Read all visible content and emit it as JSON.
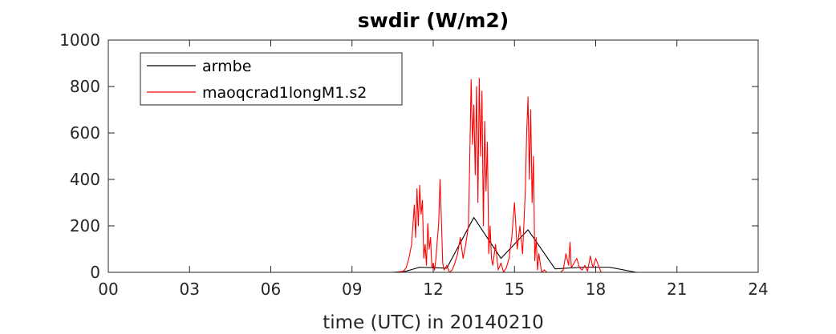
{
  "chart_data": {
    "type": "line",
    "title": "swdir  (W/m2)",
    "xlabel": "time (UTC) in 20140210",
    "ylabel": "",
    "xlim": [
      0,
      24
    ],
    "ylim": [
      0,
      1000
    ],
    "x_ticks": [
      0,
      3,
      6,
      9,
      12,
      15,
      18,
      21,
      24
    ],
    "x_tick_labels": [
      "00",
      "03",
      "06",
      "09",
      "12",
      "15",
      "18",
      "21",
      "24"
    ],
    "y_ticks": [
      0,
      200,
      400,
      600,
      800,
      1000
    ],
    "y_tick_labels": [
      "0",
      "200",
      "400",
      "600",
      "800",
      "1000"
    ],
    "grid": false,
    "legend_position": "top-left",
    "series": [
      {
        "name": "armbe",
        "color": "#000000",
        "x": [
          0,
          10.5,
          11.0,
          11.5,
          12.0,
          12.5,
          13.5,
          14.5,
          15.5,
          16.5,
          17.5,
          18.5,
          19.5,
          24
        ],
        "y": [
          0,
          0,
          5,
          22,
          20,
          18,
          236,
          60,
          183,
          15,
          22,
          22,
          0,
          0
        ]
      },
      {
        "name": "maoqcrad1longM1.s2",
        "color": "#ff0000",
        "x": [
          0,
          10.6,
          10.9,
          11.0,
          11.1,
          11.2,
          11.3,
          11.35,
          11.4,
          11.45,
          11.5,
          11.55,
          11.6,
          11.65,
          11.7,
          11.75,
          11.8,
          11.85,
          11.9,
          11.95,
          12.0,
          12.05,
          12.1,
          12.15,
          12.2,
          12.25,
          12.3,
          12.35,
          12.4,
          12.5,
          12.6,
          12.7,
          12.8,
          12.9,
          13.0,
          13.1,
          13.2,
          13.3,
          13.35,
          13.4,
          13.45,
          13.5,
          13.55,
          13.6,
          13.65,
          13.7,
          13.75,
          13.8,
          13.85,
          13.9,
          13.95,
          14.0,
          14.05,
          14.1,
          14.15,
          14.2,
          14.3,
          14.4,
          14.5,
          14.6,
          14.7,
          14.8,
          14.9,
          15.0,
          15.1,
          15.2,
          15.3,
          15.4,
          15.45,
          15.5,
          15.55,
          15.6,
          15.65,
          15.7,
          15.75,
          15.8,
          15.85,
          15.9,
          16.0,
          16.1,
          16.2,
          16.3,
          16.5,
          16.7,
          16.8,
          16.9,
          17.0,
          17.05,
          17.1,
          17.2,
          17.3,
          17.4,
          17.5,
          17.6,
          17.7,
          17.8,
          17.9,
          18.0,
          18.2,
          24
        ],
        "y": [
          0,
          0,
          5,
          20,
          60,
          120,
          290,
          150,
          360,
          200,
          375,
          250,
          310,
          60,
          120,
          30,
          210,
          100,
          150,
          20,
          40,
          10,
          60,
          140,
          210,
          400,
          230,
          40,
          10,
          30,
          0,
          10,
          40,
          80,
          150,
          60,
          120,
          200,
          500,
          830,
          550,
          720,
          420,
          800,
          300,
          835,
          500,
          780,
          200,
          650,
          350,
          560,
          80,
          200,
          60,
          30,
          120,
          10,
          40,
          0,
          20,
          60,
          150,
          300,
          100,
          200,
          80,
          350,
          600,
          755,
          400,
          700,
          300,
          500,
          50,
          150,
          10,
          80,
          0,
          10,
          0,
          0,
          0,
          0,
          10,
          80,
          30,
          130,
          20,
          40,
          60,
          20,
          10,
          30,
          5,
          70,
          20,
          60,
          0,
          0
        ]
      }
    ]
  }
}
